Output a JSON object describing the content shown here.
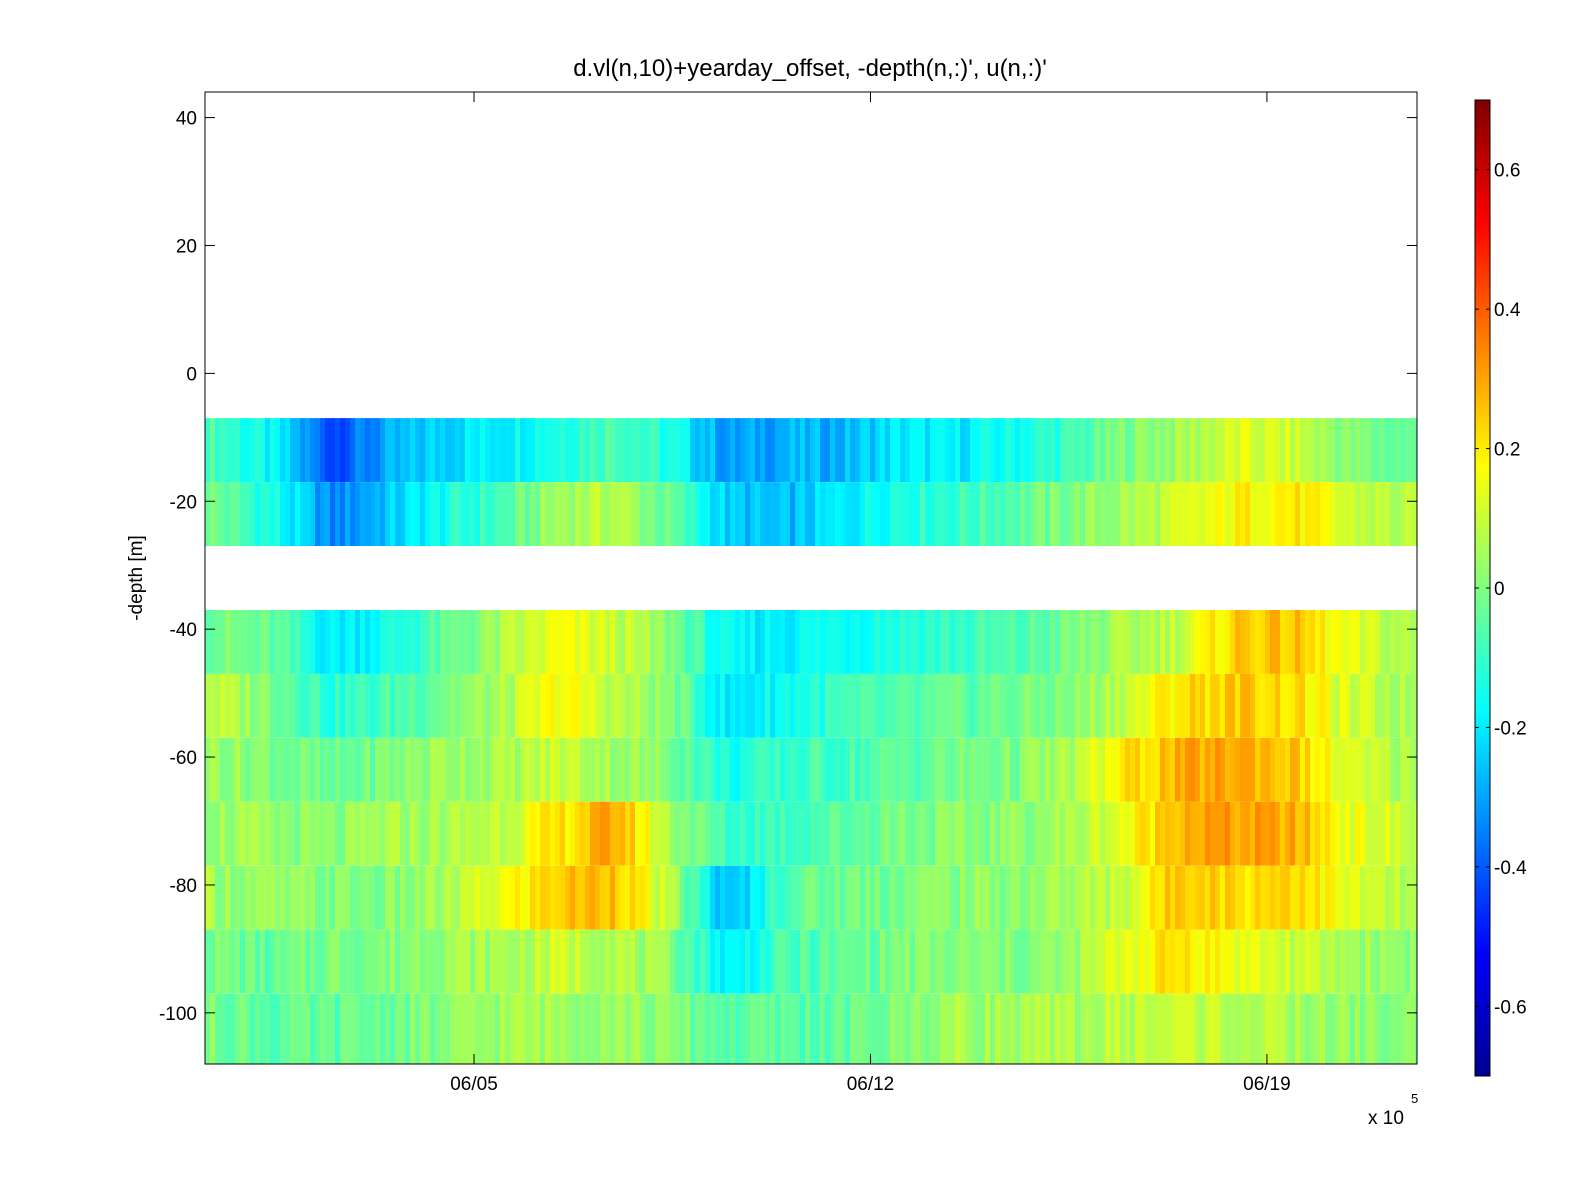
{
  "chart_data": {
    "type": "heatmap",
    "title": "d.vl(n,10)+yearday_offset, -depth(n,:)', u(n,:)'",
    "ylabel": "-depth [m]",
    "x_multiplier_label": "x 10",
    "x_multiplier_exponent": "5",
    "x_ticks": [
      "06/05",
      "06/12",
      "06/19"
    ],
    "x_tick_days": [
      5,
      12,
      19
    ],
    "xlim_days": [
      0.25,
      21.65
    ],
    "ylim": [
      -108,
      44
    ],
    "y_ticks": [
      40,
      20,
      0,
      -20,
      -40,
      -60,
      -80,
      -100
    ],
    "y_tick_labels": [
      "40",
      "20",
      "0",
      "-20",
      "-40",
      "-60",
      "-80",
      "-100"
    ],
    "colorbar": {
      "colormap": "jet",
      "clim": [
        -0.7,
        0.7
      ],
      "ticks": [
        0.6,
        0.4,
        0.2,
        0,
        -0.2,
        -0.4,
        -0.6
      ],
      "tick_labels": [
        "0.6",
        "0.4",
        "0.2",
        "0",
        "-0.2",
        "-0.4",
        "-0.6"
      ]
    },
    "depth_bins": [
      {
        "top": -7,
        "bottom": -17
      },
      {
        "top": -17,
        "bottom": -27
      },
      {
        "top": -37,
        "bottom": -47
      },
      {
        "top": -47,
        "bottom": -57
      },
      {
        "top": -57,
        "bottom": -67
      },
      {
        "top": -67,
        "bottom": -77
      },
      {
        "top": -77,
        "bottom": -87
      },
      {
        "top": -87,
        "bottom": -97
      },
      {
        "top": -97,
        "bottom": -108
      }
    ],
    "time_knots_days": [
      0.25,
      1.5,
      2.5,
      3.5,
      4.5,
      5.5,
      6.5,
      7.5,
      8.5,
      9.5,
      10.5,
      11.5,
      12.5,
      13.5,
      14.5,
      15.5,
      16.5,
      17.5,
      18.5,
      19.5,
      20.5,
      21.65
    ],
    "u_profiles": [
      [
        -0.05,
        -0.2,
        -0.42,
        -0.3,
        -0.22,
        -0.18,
        -0.12,
        -0.05,
        -0.15,
        -0.32,
        -0.28,
        -0.28,
        -0.2,
        -0.2,
        -0.15,
        -0.1,
        0.0,
        0.05,
        0.12,
        0.1,
        0.0,
        -0.05
      ],
      [
        0.0,
        -0.15,
        -0.35,
        -0.25,
        -0.15,
        -0.08,
        0.05,
        0.08,
        -0.05,
        -0.25,
        -0.28,
        -0.2,
        -0.12,
        -0.1,
        -0.05,
        0.0,
        0.05,
        0.1,
        0.18,
        0.2,
        0.1,
        0.05
      ],
      [
        0.0,
        -0.05,
        -0.2,
        -0.15,
        -0.05,
        0.05,
        0.15,
        0.1,
        0.0,
        -0.2,
        -0.18,
        -0.15,
        -0.12,
        -0.1,
        -0.08,
        -0.02,
        0.05,
        0.1,
        0.25,
        0.25,
        0.12,
        0.05
      ],
      [
        0.1,
        0.0,
        -0.12,
        -0.08,
        0.0,
        0.05,
        0.18,
        0.08,
        0.0,
        -0.22,
        -0.15,
        -0.1,
        -0.08,
        -0.05,
        -0.02,
        0.0,
        0.1,
        0.22,
        0.25,
        0.22,
        0.1,
        0.05
      ],
      [
        0.05,
        0.0,
        -0.05,
        0.0,
        0.05,
        0.05,
        0.1,
        0.05,
        0.0,
        -0.15,
        -0.1,
        -0.08,
        -0.05,
        -0.02,
        0.0,
        0.05,
        0.2,
        0.28,
        0.3,
        0.25,
        0.1,
        0.05
      ],
      [
        0.05,
        0.02,
        0.0,
        0.05,
        0.05,
        0.1,
        0.2,
        0.3,
        0.05,
        -0.1,
        -0.08,
        -0.05,
        0.0,
        0.0,
        0.02,
        0.05,
        0.15,
        0.3,
        0.3,
        0.28,
        0.15,
        0.08
      ],
      [
        0.05,
        0.02,
        0.0,
        0.0,
        0.05,
        0.15,
        0.25,
        0.28,
        0.05,
        -0.3,
        -0.05,
        -0.02,
        0.0,
        0.02,
        0.02,
        0.05,
        0.1,
        0.28,
        0.22,
        0.25,
        0.12,
        0.05
      ],
      [
        0.0,
        -0.05,
        0.0,
        0.0,
        0.05,
        0.05,
        0.1,
        0.08,
        0.0,
        -0.2,
        -0.08,
        -0.05,
        0.0,
        0.0,
        0.0,
        0.02,
        0.15,
        0.22,
        0.15,
        0.1,
        0.05,
        0.02
      ],
      [
        0.0,
        -0.05,
        -0.05,
        -0.02,
        0.0,
        0.05,
        0.05,
        0.05,
        0.0,
        -0.05,
        -0.05,
        -0.05,
        0.0,
        0.05,
        0.05,
        0.05,
        0.08,
        0.1,
        0.08,
        0.05,
        0.02,
        0.0
      ]
    ]
  }
}
